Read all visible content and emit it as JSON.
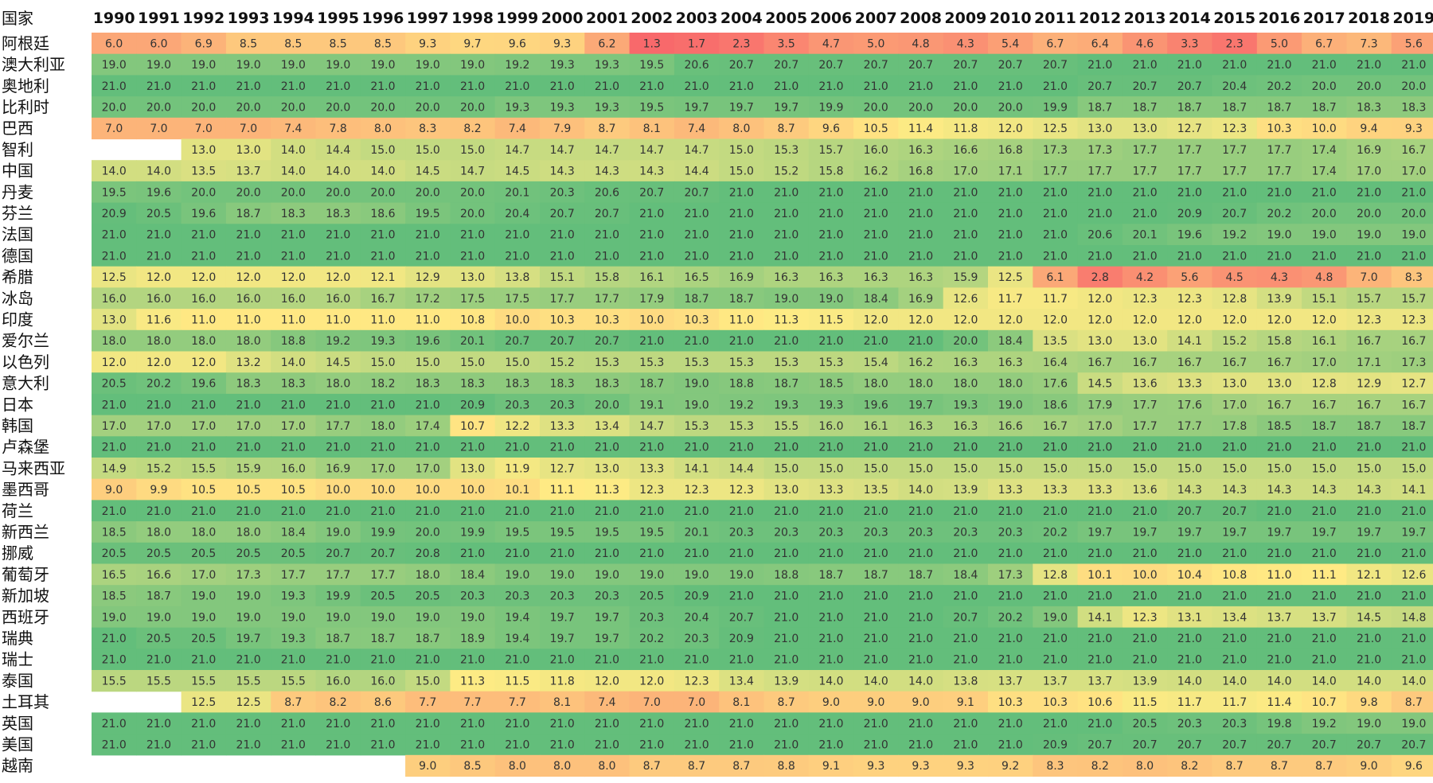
{
  "chart_data": {
    "type": "heatmap",
    "header_label": "国家",
    "years": [
      "1990",
      "1991",
      "1992",
      "1993",
      "1994",
      "1995",
      "1996",
      "1997",
      "1998",
      "1999",
      "2000",
      "2001",
      "2002",
      "2003",
      "2004",
      "2005",
      "2006",
      "2007",
      "2008",
      "2009",
      "2010",
      "2011",
      "2012",
      "2013",
      "2014",
      "2015",
      "2016",
      "2017",
      "2018",
      "2019"
    ],
    "color_scale": {
      "low": "#f8696b",
      "mid": "#ffeb84",
      "high": "#63be7b",
      "min": 1.3,
      "mid_value": 11.2,
      "max": 21.0
    },
    "rows": [
      {
        "country": "阿根廷",
        "values": [
          6.0,
          6.0,
          6.9,
          8.5,
          8.5,
          8.5,
          8.5,
          9.3,
          9.7,
          9.6,
          9.3,
          6.2,
          1.3,
          1.7,
          2.3,
          3.5,
          4.7,
          5.0,
          4.8,
          4.3,
          5.4,
          6.7,
          6.4,
          4.6,
          3.3,
          2.3,
          5.0,
          6.7,
          7.3,
          5.6
        ]
      },
      {
        "country": "澳大利亚",
        "values": [
          19.0,
          19.0,
          19.0,
          19.0,
          19.0,
          19.0,
          19.0,
          19.0,
          19.0,
          19.2,
          19.3,
          19.3,
          19.5,
          20.6,
          20.7,
          20.7,
          20.7,
          20.7,
          20.7,
          20.7,
          20.7,
          20.7,
          21.0,
          21.0,
          21.0,
          21.0,
          21.0,
          21.0,
          21.0,
          21.0
        ]
      },
      {
        "country": "奥地利",
        "values": [
          21.0,
          21.0,
          21.0,
          21.0,
          21.0,
          21.0,
          21.0,
          21.0,
          21.0,
          21.0,
          21.0,
          21.0,
          21.0,
          21.0,
          21.0,
          21.0,
          21.0,
          21.0,
          21.0,
          21.0,
          21.0,
          21.0,
          20.7,
          20.7,
          20.7,
          20.4,
          20.2,
          20.0,
          20.0,
          20.0
        ]
      },
      {
        "country": "比利时",
        "values": [
          20.0,
          20.0,
          20.0,
          20.0,
          20.0,
          20.0,
          20.0,
          20.0,
          20.0,
          19.3,
          19.3,
          19.3,
          19.5,
          19.7,
          19.7,
          19.7,
          19.9,
          20.0,
          20.0,
          20.0,
          20.0,
          19.9,
          18.7,
          18.7,
          18.7,
          18.7,
          18.7,
          18.7,
          18.3,
          18.3
        ]
      },
      {
        "country": "巴西",
        "values": [
          7.0,
          7.0,
          7.0,
          7.0,
          7.4,
          7.8,
          8.0,
          8.3,
          8.2,
          7.4,
          7.9,
          8.7,
          8.1,
          7.4,
          8.0,
          8.7,
          9.6,
          10.5,
          11.4,
          11.8,
          12.0,
          12.5,
          13.0,
          13.0,
          12.7,
          12.3,
          10.3,
          10.0,
          9.4,
          9.3
        ]
      },
      {
        "country": "智利",
        "values": [
          null,
          null,
          13.0,
          13.0,
          14.0,
          14.4,
          15.0,
          15.0,
          15.0,
          14.7,
          14.7,
          14.7,
          14.7,
          14.7,
          15.0,
          15.3,
          15.7,
          16.0,
          16.3,
          16.6,
          16.8,
          17.3,
          17.3,
          17.7,
          17.7,
          17.7,
          17.7,
          17.4,
          16.9,
          16.7
        ]
      },
      {
        "country": "中国",
        "values": [
          14.0,
          14.0,
          13.5,
          13.7,
          14.0,
          14.0,
          14.0,
          14.5,
          14.7,
          14.5,
          14.3,
          14.3,
          14.3,
          14.4,
          15.0,
          15.2,
          15.8,
          16.2,
          16.8,
          17.0,
          17.1,
          17.7,
          17.7,
          17.7,
          17.7,
          17.7,
          17.7,
          17.4,
          17.0,
          17.0
        ]
      },
      {
        "country": "丹麦",
        "values": [
          19.5,
          19.6,
          20.0,
          20.0,
          20.0,
          20.0,
          20.0,
          20.0,
          20.0,
          20.1,
          20.3,
          20.6,
          20.7,
          20.7,
          21.0,
          21.0,
          21.0,
          21.0,
          21.0,
          21.0,
          21.0,
          21.0,
          21.0,
          21.0,
          21.0,
          21.0,
          21.0,
          21.0,
          21.0,
          21.0
        ]
      },
      {
        "country": "芬兰",
        "values": [
          20.9,
          20.5,
          19.6,
          18.7,
          18.3,
          18.3,
          18.6,
          19.5,
          20.0,
          20.4,
          20.7,
          20.7,
          21.0,
          21.0,
          21.0,
          21.0,
          21.0,
          21.0,
          21.0,
          21.0,
          21.0,
          21.0,
          21.0,
          21.0,
          20.9,
          20.7,
          20.2,
          20.0,
          20.0,
          20.0
        ]
      },
      {
        "country": "法国",
        "values": [
          21.0,
          21.0,
          21.0,
          21.0,
          21.0,
          21.0,
          21.0,
          21.0,
          21.0,
          21.0,
          21.0,
          21.0,
          21.0,
          21.0,
          21.0,
          21.0,
          21.0,
          21.0,
          21.0,
          21.0,
          21.0,
          21.0,
          20.6,
          20.1,
          19.6,
          19.2,
          19.0,
          19.0,
          19.0,
          19.0
        ]
      },
      {
        "country": "德国",
        "values": [
          21.0,
          21.0,
          21.0,
          21.0,
          21.0,
          21.0,
          21.0,
          21.0,
          21.0,
          21.0,
          21.0,
          21.0,
          21.0,
          21.0,
          21.0,
          21.0,
          21.0,
          21.0,
          21.0,
          21.0,
          21.0,
          21.0,
          21.0,
          21.0,
          21.0,
          21.0,
          21.0,
          21.0,
          21.0,
          21.0
        ]
      },
      {
        "country": "希腊",
        "values": [
          12.5,
          12.0,
          12.0,
          12.0,
          12.0,
          12.0,
          12.1,
          12.9,
          13.0,
          13.8,
          15.1,
          15.8,
          16.1,
          16.5,
          16.9,
          16.3,
          16.3,
          16.3,
          16.3,
          15.9,
          12.5,
          6.1,
          2.8,
          4.2,
          5.6,
          4.5,
          4.3,
          4.8,
          7.0,
          8.3
        ]
      },
      {
        "country": "冰岛",
        "values": [
          16.0,
          16.0,
          16.0,
          16.0,
          16.0,
          16.0,
          16.7,
          17.2,
          17.5,
          17.5,
          17.7,
          17.7,
          17.9,
          18.7,
          18.7,
          19.0,
          19.0,
          18.4,
          16.9,
          12.6,
          11.7,
          11.7,
          12.0,
          12.3,
          12.3,
          12.8,
          13.9,
          15.1,
          15.7,
          15.7
        ]
      },
      {
        "country": "印度",
        "values": [
          13.0,
          11.6,
          11.0,
          11.0,
          11.0,
          11.0,
          11.0,
          11.0,
          10.8,
          10.0,
          10.3,
          10.3,
          10.0,
          10.3,
          11.0,
          11.3,
          11.5,
          12.0,
          12.0,
          12.0,
          12.0,
          12.0,
          12.0,
          12.0,
          12.0,
          12.0,
          12.0,
          12.0,
          12.3,
          12.3
        ]
      },
      {
        "country": "爱尔兰",
        "values": [
          18.0,
          18.0,
          18.0,
          18.0,
          18.8,
          19.2,
          19.3,
          19.6,
          20.1,
          20.7,
          20.7,
          20.7,
          21.0,
          21.0,
          21.0,
          21.0,
          21.0,
          21.0,
          21.0,
          20.0,
          18.4,
          13.5,
          13.0,
          13.0,
          14.1,
          15.2,
          15.8,
          16.1,
          16.7,
          16.7
        ]
      },
      {
        "country": "以色列",
        "values": [
          12.0,
          12.0,
          12.0,
          13.2,
          14.0,
          14.5,
          15.0,
          15.0,
          15.0,
          15.0,
          15.2,
          15.3,
          15.3,
          15.3,
          15.3,
          15.3,
          15.3,
          15.4,
          16.2,
          16.3,
          16.3,
          16.4,
          16.7,
          16.7,
          16.7,
          16.7,
          16.7,
          17.0,
          17.1,
          17.3
        ]
      },
      {
        "country": "意大利",
        "values": [
          20.5,
          20.2,
          19.6,
          18.3,
          18.3,
          18.0,
          18.2,
          18.3,
          18.3,
          18.3,
          18.3,
          18.3,
          18.7,
          19.0,
          18.8,
          18.7,
          18.5,
          18.0,
          18.0,
          18.0,
          18.0,
          17.6,
          14.5,
          13.6,
          13.3,
          13.0,
          13.0,
          12.8,
          12.9,
          12.7
        ]
      },
      {
        "country": "日本",
        "values": [
          21.0,
          21.0,
          21.0,
          21.0,
          21.0,
          21.0,
          21.0,
          21.0,
          20.9,
          20.3,
          20.3,
          20.0,
          19.1,
          19.0,
          19.2,
          19.3,
          19.3,
          19.6,
          19.7,
          19.3,
          19.0,
          18.6,
          17.9,
          17.7,
          17.6,
          17.0,
          16.7,
          16.7,
          16.7,
          16.7
        ]
      },
      {
        "country": "韩国",
        "values": [
          17.0,
          17.0,
          17.0,
          17.0,
          17.0,
          17.7,
          18.0,
          17.4,
          10.7,
          12.2,
          13.3,
          13.4,
          14.7,
          15.3,
          15.3,
          15.5,
          16.0,
          16.1,
          16.3,
          16.3,
          16.6,
          16.7,
          17.0,
          17.7,
          17.7,
          17.8,
          18.5,
          18.7,
          18.7,
          18.7
        ]
      },
      {
        "country": "卢森堡",
        "values": [
          21.0,
          21.0,
          21.0,
          21.0,
          21.0,
          21.0,
          21.0,
          21.0,
          21.0,
          21.0,
          21.0,
          21.0,
          21.0,
          21.0,
          21.0,
          21.0,
          21.0,
          21.0,
          21.0,
          21.0,
          21.0,
          21.0,
          21.0,
          21.0,
          21.0,
          21.0,
          21.0,
          21.0,
          21.0,
          21.0
        ]
      },
      {
        "country": "马来西亚",
        "values": [
          14.9,
          15.2,
          15.5,
          15.9,
          16.0,
          16.9,
          17.0,
          17.0,
          13.0,
          11.9,
          12.7,
          13.0,
          13.3,
          14.1,
          14.4,
          15.0,
          15.0,
          15.0,
          15.0,
          15.0,
          15.0,
          15.0,
          15.0,
          15.0,
          15.0,
          15.0,
          15.0,
          15.0,
          15.0,
          15.0
        ]
      },
      {
        "country": "墨西哥",
        "values": [
          9.0,
          9.9,
          10.5,
          10.5,
          10.5,
          10.0,
          10.0,
          10.0,
          10.0,
          10.1,
          11.1,
          11.3,
          12.3,
          12.3,
          12.3,
          13.0,
          13.3,
          13.5,
          14.0,
          13.9,
          13.3,
          13.3,
          13.3,
          13.6,
          14.3,
          14.3,
          14.3,
          14.3,
          14.3,
          14.1
        ]
      },
      {
        "country": "荷兰",
        "values": [
          21.0,
          21.0,
          21.0,
          21.0,
          21.0,
          21.0,
          21.0,
          21.0,
          21.0,
          21.0,
          21.0,
          21.0,
          21.0,
          21.0,
          21.0,
          21.0,
          21.0,
          21.0,
          21.0,
          21.0,
          21.0,
          21.0,
          21.0,
          21.0,
          20.7,
          20.7,
          21.0,
          21.0,
          21.0,
          21.0
        ]
      },
      {
        "country": "新西兰",
        "values": [
          18.5,
          18.0,
          18.0,
          18.0,
          18.4,
          19.0,
          19.9,
          20.0,
          19.9,
          19.5,
          19.5,
          19.5,
          19.5,
          20.1,
          20.3,
          20.3,
          20.3,
          20.3,
          20.3,
          20.3,
          20.3,
          20.2,
          19.7,
          19.7,
          19.7,
          19.7,
          19.7,
          19.7,
          19.7,
          19.7
        ]
      },
      {
        "country": "挪威",
        "values": [
          20.5,
          20.5,
          20.5,
          20.5,
          20.5,
          20.7,
          20.7,
          20.8,
          21.0,
          21.0,
          21.0,
          21.0,
          21.0,
          21.0,
          21.0,
          21.0,
          21.0,
          21.0,
          21.0,
          21.0,
          21.0,
          21.0,
          21.0,
          21.0,
          21.0,
          21.0,
          21.0,
          21.0,
          21.0,
          21.0
        ]
      },
      {
        "country": "葡萄牙",
        "values": [
          16.5,
          16.6,
          17.0,
          17.3,
          17.7,
          17.7,
          17.7,
          18.0,
          18.4,
          19.0,
          19.0,
          19.0,
          19.0,
          19.0,
          19.0,
          18.8,
          18.7,
          18.7,
          18.7,
          18.4,
          17.3,
          12.8,
          10.1,
          10.0,
          10.4,
          10.8,
          11.0,
          11.1,
          12.1,
          12.6
        ]
      },
      {
        "country": "新加坡",
        "values": [
          18.5,
          18.7,
          19.0,
          19.0,
          19.3,
          19.9,
          20.5,
          20.5,
          20.3,
          20.3,
          20.3,
          20.3,
          20.5,
          20.9,
          21.0,
          21.0,
          21.0,
          21.0,
          21.0,
          21.0,
          21.0,
          21.0,
          21.0,
          21.0,
          21.0,
          21.0,
          21.0,
          21.0,
          21.0,
          21.0
        ]
      },
      {
        "country": "西班牙",
        "values": [
          19.0,
          19.0,
          19.0,
          19.0,
          19.0,
          19.0,
          19.0,
          19.0,
          19.0,
          19.4,
          19.7,
          19.7,
          20.3,
          20.4,
          20.7,
          21.0,
          21.0,
          21.0,
          21.0,
          20.7,
          20.2,
          19.0,
          14.1,
          12.3,
          13.1,
          13.4,
          13.7,
          13.7,
          14.5,
          14.8
        ]
      },
      {
        "country": "瑞典",
        "values": [
          21.0,
          20.5,
          20.5,
          19.7,
          19.3,
          18.7,
          18.7,
          18.7,
          18.9,
          19.4,
          19.7,
          19.7,
          20.2,
          20.3,
          20.9,
          21.0,
          21.0,
          21.0,
          21.0,
          21.0,
          21.0,
          21.0,
          21.0,
          21.0,
          21.0,
          21.0,
          21.0,
          21.0,
          21.0,
          21.0
        ]
      },
      {
        "country": "瑞士",
        "values": [
          21.0,
          21.0,
          21.0,
          21.0,
          21.0,
          21.0,
          21.0,
          21.0,
          21.0,
          21.0,
          21.0,
          21.0,
          21.0,
          21.0,
          21.0,
          21.0,
          21.0,
          21.0,
          21.0,
          21.0,
          21.0,
          21.0,
          21.0,
          21.0,
          21.0,
          21.0,
          21.0,
          21.0,
          21.0,
          21.0
        ]
      },
      {
        "country": "泰国",
        "values": [
          15.5,
          15.5,
          15.5,
          15.5,
          15.5,
          16.0,
          16.0,
          15.0,
          11.3,
          11.5,
          11.8,
          12.0,
          12.0,
          12.3,
          13.4,
          13.9,
          14.0,
          14.0,
          14.0,
          13.8,
          13.7,
          13.7,
          13.7,
          13.9,
          14.0,
          14.0,
          14.0,
          14.0,
          14.0,
          14.0
        ]
      },
      {
        "country": "土耳其",
        "values": [
          null,
          null,
          12.5,
          12.5,
          8.7,
          8.2,
          8.6,
          7.7,
          7.7,
          7.7,
          8.1,
          7.4,
          7.0,
          7.0,
          8.1,
          8.7,
          9.0,
          9.0,
          9.0,
          9.1,
          10.3,
          10.3,
          10.6,
          11.5,
          11.7,
          11.7,
          11.4,
          10.7,
          9.8,
          8.7
        ]
      },
      {
        "country": "英国",
        "values": [
          21.0,
          21.0,
          21.0,
          21.0,
          21.0,
          21.0,
          21.0,
          21.0,
          21.0,
          21.0,
          21.0,
          21.0,
          21.0,
          21.0,
          21.0,
          21.0,
          21.0,
          21.0,
          21.0,
          21.0,
          21.0,
          21.0,
          21.0,
          20.5,
          20.3,
          20.3,
          19.8,
          19.2,
          19.0,
          19.0
        ]
      },
      {
        "country": "美国",
        "values": [
          21.0,
          21.0,
          21.0,
          21.0,
          21.0,
          21.0,
          21.0,
          21.0,
          21.0,
          21.0,
          21.0,
          21.0,
          21.0,
          21.0,
          21.0,
          21.0,
          21.0,
          21.0,
          21.0,
          21.0,
          21.0,
          20.9,
          20.7,
          20.7,
          20.7,
          20.7,
          20.7,
          20.7,
          20.7,
          20.7
        ]
      },
      {
        "country": "越南",
        "values": [
          null,
          null,
          null,
          null,
          null,
          null,
          null,
          9.0,
          8.5,
          8.0,
          8.0,
          8.0,
          8.7,
          8.7,
          8.7,
          8.8,
          9.1,
          9.3,
          9.3,
          9.3,
          9.2,
          8.3,
          8.2,
          8.0,
          8.2,
          8.7,
          8.7,
          8.7,
          9.0,
          9.6
        ]
      }
    ]
  }
}
